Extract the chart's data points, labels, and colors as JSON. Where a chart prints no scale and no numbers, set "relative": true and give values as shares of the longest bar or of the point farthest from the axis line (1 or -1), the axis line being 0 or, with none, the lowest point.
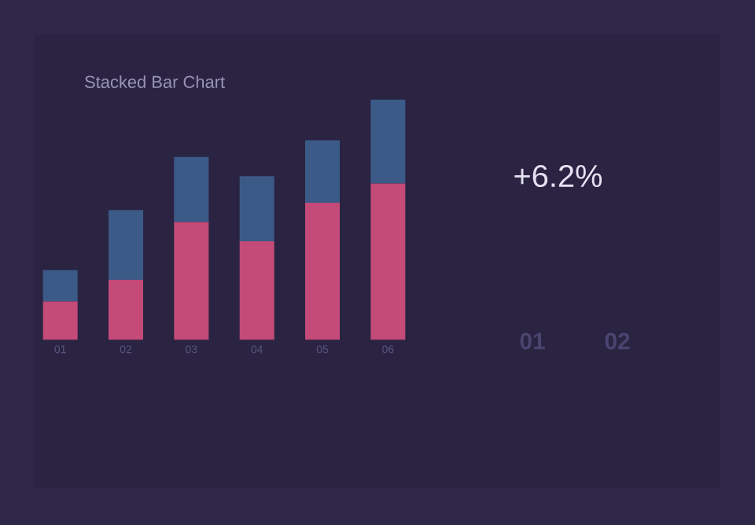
{
  "chart_data": {
    "type": "bar",
    "title": "Stacked Bar Chart",
    "stacked": true,
    "relative": true,
    "categories": [
      "01",
      "02",
      "03",
      "04",
      "05",
      "06"
    ],
    "series": [
      {
        "color": "#c44a78",
        "values": [
          0.16,
          0.25,
          0.49,
          0.41,
          0.57,
          0.65
        ]
      },
      {
        "color": "#3c5a88",
        "values": [
          0.13,
          0.29,
          0.27,
          0.27,
          0.26,
          0.35
        ]
      }
    ],
    "annotations": [
      "+6.2%",
      "01",
      "02"
    ]
  }
}
